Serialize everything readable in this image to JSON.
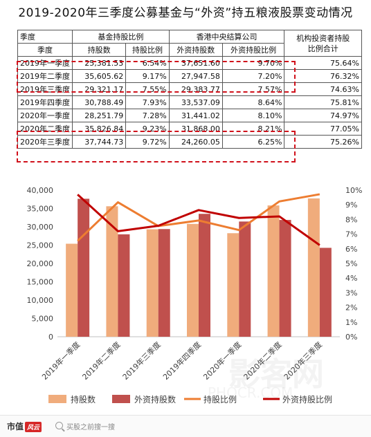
{
  "title": "2019-2020年三季度公募基金与“外资”持五粮液股票变动情况",
  "table": {
    "top_headers": [
      "季度",
      "基金持股比例",
      "香港中央结算公司",
      "机构投资者持股比例合计"
    ],
    "sub_headers": [
      "季度",
      "持股数",
      "持股比例",
      "外资持股数",
      "外资持股比例"
    ],
    "rows": [
      {
        "q": "2019年一季度",
        "fund_shares": "25,381.53",
        "fund_pct": "6.54%",
        "hk_shares": "37,651.60",
        "hk_pct": "9.70%",
        "total": "75.64%"
      },
      {
        "q": "2019年二季度",
        "fund_shares": "35,605.62",
        "fund_pct": "9.17%",
        "hk_shares": "27,947.58",
        "hk_pct": "7.20%",
        "total": "76.32%"
      },
      {
        "q": "2019年三季度",
        "fund_shares": "29,321.17",
        "fund_pct": "7.55%",
        "hk_shares": "29,383.77",
        "hk_pct": "7.57%",
        "total": "74.63%"
      },
      {
        "q": "2019年四季度",
        "fund_shares": "30,788.49",
        "fund_pct": "7.93%",
        "hk_shares": "33,537.09",
        "hk_pct": "8.64%",
        "total": "75.81%"
      },
      {
        "q": "2020年一季度",
        "fund_shares": "28,251.79",
        "fund_pct": "7.28%",
        "hk_shares": "31,441.02",
        "hk_pct": "8.10%",
        "total": "74.97%"
      },
      {
        "q": "2020年二季度",
        "fund_shares": "35,826.84",
        "fund_pct": "9.23%",
        "hk_shares": "31,868.00",
        "hk_pct": "8.21%",
        "total": "77.05%"
      },
      {
        "q": "2020年三季度",
        "fund_shares": "37,744.73",
        "fund_pct": "9.72%",
        "hk_shares": "24,260.05",
        "hk_pct": "6.25%",
        "total": "75.26%"
      }
    ]
  },
  "chart_data": {
    "type": "bar",
    "categories": [
      "2019年一季度",
      "2019年二季度",
      "2019年三季度",
      "2019年四季度",
      "2020年一季度",
      "2020年二季度",
      "2020年三季度"
    ],
    "series": [
      {
        "name": "持股数",
        "type": "bar",
        "axis": "left",
        "color": "#f0ac7c",
        "values": [
          25381.53,
          35605.62,
          29321.17,
          30788.49,
          28251.79,
          35826.84,
          37744.73
        ]
      },
      {
        "name": "外资持股数",
        "type": "bar",
        "axis": "left",
        "color": "#c0504d",
        "values": [
          37651.6,
          27947.58,
          29383.77,
          33537.09,
          31441.02,
          31868.0,
          24260.05
        ]
      },
      {
        "name": "持股比例",
        "type": "line",
        "axis": "right",
        "color": "#ed7d31",
        "values": [
          6.54,
          9.17,
          7.55,
          7.93,
          7.28,
          9.23,
          9.72
        ]
      },
      {
        "name": "外资持股比例",
        "type": "line",
        "axis": "right",
        "color": "#c00000",
        "values": [
          9.7,
          7.2,
          7.57,
          8.64,
          8.1,
          8.21,
          6.25
        ]
      }
    ],
    "y_left": {
      "ticks": [
        "0",
        "5,000",
        "10,000",
        "15,000",
        "20,000",
        "25,000",
        "30,000",
        "35,000",
        "40,000"
      ],
      "ylim": [
        0,
        40000
      ]
    },
    "y_right": {
      "ticks": [
        "0%",
        "1%",
        "2%",
        "3%",
        "4%",
        "5%",
        "6%",
        "7%",
        "8%",
        "9%",
        "10%"
      ],
      "ylim": [
        0,
        10
      ]
    },
    "grid": false,
    "legend": "bottom"
  },
  "footer": {
    "brand": "市值",
    "brand_badge": "风云",
    "tagline": "买股之前搜一搜"
  },
  "watermark": {
    "text1": "影客网",
    "text2": "PHOCR.COM"
  }
}
